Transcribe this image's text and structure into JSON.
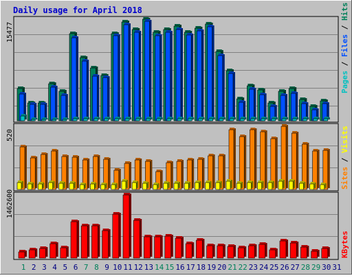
{
  "chart_data": [
    {
      "type": "bar",
      "title": "Daily usage for April 2018",
      "categories": [
        "1",
        "2",
        "3",
        "4",
        "5",
        "6",
        "7",
        "8",
        "9",
        "10",
        "11",
        "12",
        "13",
        "14",
        "15",
        "16",
        "17",
        "18",
        "19",
        "20",
        "21",
        "22",
        "23",
        "24",
        "25",
        "26",
        "27",
        "28",
        "29",
        "30",
        "31"
      ],
      "weekend_days": [
        "1",
        "7",
        "8",
        "14",
        "15",
        "21",
        "22",
        "28",
        "29"
      ],
      "colors": {
        "title": "#0000cc",
        "weekday_label": "#000080",
        "weekend_label": "#00805a",
        "hits": "#00805a",
        "files": "#0050ff",
        "pages": "#00c0c0",
        "visits": "#ff8000",
        "sites": "#ffff00",
        "kbytes": "#ff0000",
        "separator": "#000000",
        "background": "#c0c0c0"
      },
      "ylabel_parts": [
        {
          "text": "Pages",
          "color": "#00c0c0"
        },
        {
          "text": " / ",
          "color": "#000000"
        },
        {
          "text": "Files",
          "color": "#0050ff"
        },
        {
          "text": " / ",
          "color": "#000000"
        },
        {
          "text": "Hits",
          "color": "#00805a"
        }
      ],
      "ytick": "15477",
      "ylim": [
        0,
        17000
      ],
      "series": [
        {
          "name": "Hits",
          "values": [
            5400,
            3000,
            3000,
            6200,
            4900,
            14600,
            10600,
            8800,
            7600,
            14600,
            16500,
            15300,
            17000,
            14800,
            15300,
            15800,
            14800,
            15500,
            16200,
            11600,
            8400,
            3700,
            5900,
            5200,
            3000,
            4900,
            5400,
            3600,
            2400,
            3300,
            0
          ]
        },
        {
          "name": "Files",
          "values": [
            4500,
            2800,
            2800,
            5600,
            4300,
            13900,
            10000,
            7500,
            7200,
            14200,
            16100,
            14800,
            16700,
            14300,
            14800,
            15300,
            14400,
            15000,
            15700,
            10900,
            7900,
            3100,
            5300,
            4400,
            2400,
            4300,
            4600,
            2900,
            1800,
            2900,
            0
          ]
        },
        {
          "name": "Pages",
          "values": [
            800,
            200,
            200,
            200,
            200,
            300,
            300,
            300,
            300,
            300,
            300,
            300,
            300,
            300,
            300,
            300,
            300,
            300,
            300,
            300,
            300,
            300,
            300,
            300,
            300,
            300,
            300,
            300,
            300,
            300,
            0
          ]
        }
      ]
    },
    {
      "type": "bar",
      "ylabel_parts": [
        {
          "text": "Sites",
          "color": "#ff8000"
        },
        {
          "text": " / ",
          "color": "#000000"
        },
        {
          "text": "Visits",
          "color": "#ffff00"
        }
      ],
      "ytick": "520",
      "ylim": [
        0,
        560
      ],
      "series": [
        {
          "name": "Visits",
          "values": [
            380,
            280,
            310,
            340,
            290,
            285,
            260,
            290,
            270,
            170,
            230,
            260,
            250,
            160,
            240,
            250,
            260,
            270,
            300,
            300,
            530,
            470,
            530,
            510,
            450,
            560,
            500,
            400,
            340,
            345,
            0
          ]
        },
        {
          "name": "Sites",
          "values": [
            60,
            50,
            50,
            60,
            55,
            55,
            45,
            50,
            40,
            45,
            70,
            60,
            55,
            40,
            55,
            55,
            55,
            60,
            60,
            60,
            70,
            55,
            60,
            60,
            60,
            75,
            70,
            55,
            50,
            45,
            0
          ]
        }
      ]
    },
    {
      "type": "bar",
      "ylabel_parts": [
        {
          "text": "KBytes",
          "color": "#ff0000"
        }
      ],
      "ytick": "1462600",
      "ylim": [
        0,
        1500000
      ],
      "series": [
        {
          "name": "KBytes",
          "values": [
            150000,
            200000,
            230000,
            340000,
            240000,
            860000,
            770000,
            770000,
            650000,
            1040000,
            1500000,
            890000,
            510000,
            500000,
            520000,
            480000,
            340000,
            420000,
            300000,
            300000,
            280000,
            250000,
            300000,
            320000,
            200000,
            410000,
            360000,
            260000,
            170000,
            230000,
            0
          ]
        }
      ]
    }
  ]
}
